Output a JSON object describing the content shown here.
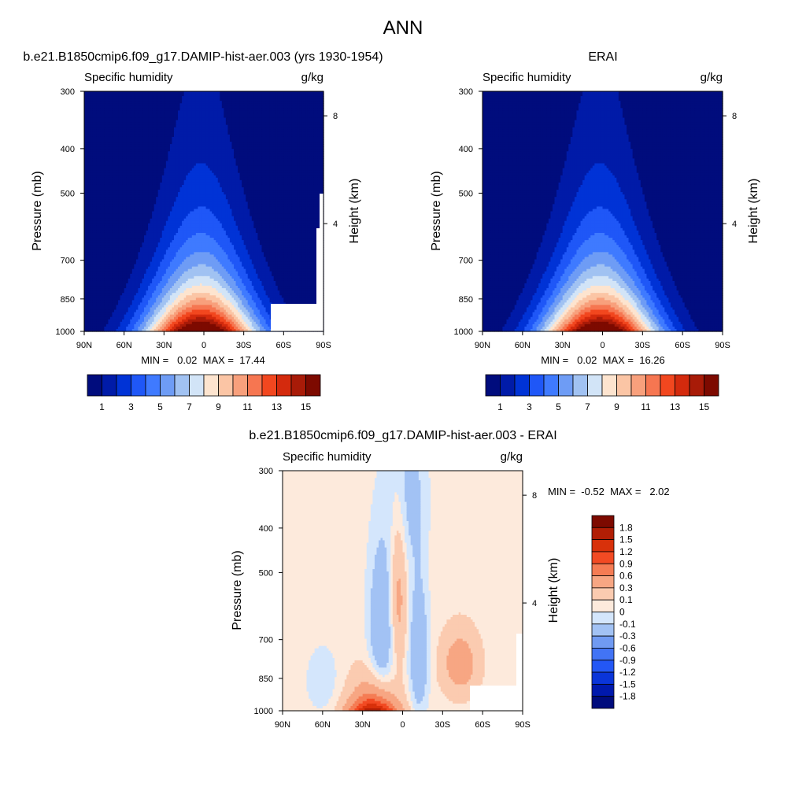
{
  "figure": {
    "title": "ANN"
  },
  "colors": {
    "abs_levels": [
      "#000c7d",
      "#001ba8",
      "#0033d6",
      "#1f57f7",
      "#3f7aff",
      "#6e9cf5",
      "#a1c2f2",
      "#d2e4f7",
      "#fde4cf",
      "#fbc5a5",
      "#f8a07c",
      "#f67651",
      "#f2471f",
      "#d42a0d",
      "#a81b08",
      "#7d0a00"
    ],
    "diff_levels": [
      "#000c7d",
      "#0019ad",
      "#0a35d9",
      "#2357f5",
      "#4274f5",
      "#709af2",
      "#a2c2f4",
      "#d4e6fc",
      "#fdeadc",
      "#fbcbb0",
      "#f7a683",
      "#f57c54",
      "#f24a23",
      "#d8310b",
      "#b11e05",
      "#7d0a00"
    ]
  },
  "chart_data": [
    {
      "type": "heatmap",
      "id": "model",
      "header": "b.e21.B1850cmip6.f09_g17.DAMIP-hist-aer.003 (yrs 1930-1954)",
      "left_label": "Specific humidity",
      "right_label": "g/kg",
      "ylabel": "Pressure (mb)",
      "y2label": "Height (km)",
      "x_ticks": [
        "90N",
        "60N",
        "30N",
        "0",
        "30S",
        "60S",
        "90S"
      ],
      "y_ticks": [
        "300",
        "400",
        "500",
        "700",
        "850",
        "1000"
      ],
      "y2_ticks": [
        "8",
        "4"
      ],
      "min_max_text": "MIN =   0.02  MAX =  17.44",
      "min": 0.02,
      "max": 17.44,
      "colorbar_labels": [
        "1",
        "3",
        "5",
        "7",
        "9",
        "11",
        "13",
        "15"
      ],
      "colorbar_levels": [
        0,
        1,
        2,
        3,
        4,
        5,
        6,
        7,
        8,
        9,
        10,
        11,
        12,
        13,
        14,
        15,
        16
      ]
    },
    {
      "type": "heatmap",
      "id": "obs",
      "header": "ERAI",
      "left_label": "Specific humidity",
      "right_label": "g/kg",
      "ylabel": "Pressure (mb)",
      "y2label": "Height (km)",
      "x_ticks": [
        "90N",
        "60N",
        "30N",
        "0",
        "30S",
        "60S",
        "90S"
      ],
      "y_ticks": [
        "300",
        "400",
        "500",
        "700",
        "850",
        "1000"
      ],
      "y2_ticks": [
        "8",
        "4"
      ],
      "min_max_text": "MIN =   0.02  MAX =  16.26",
      "min": 0.02,
      "max": 16.26,
      "colorbar_labels": [
        "1",
        "3",
        "5",
        "7",
        "9",
        "11",
        "13",
        "15"
      ],
      "colorbar_levels": [
        0,
        1,
        2,
        3,
        4,
        5,
        6,
        7,
        8,
        9,
        10,
        11,
        12,
        13,
        14,
        15,
        16
      ]
    },
    {
      "type": "heatmap",
      "id": "diff",
      "header": "b.e21.B1850cmip6.f09_g17.DAMIP-hist-aer.003 - ERAI",
      "left_label": "Specific humidity",
      "right_label": "g/kg",
      "ylabel": "Pressure (mb)",
      "y2label": "Height (km)",
      "x_ticks": [
        "90N",
        "60N",
        "30N",
        "0",
        "30S",
        "60S",
        "90S"
      ],
      "y_ticks": [
        "300",
        "400",
        "500",
        "700",
        "850",
        "1000"
      ],
      "y2_ticks": [
        "8",
        "4"
      ],
      "min_max_text": "MIN =  -0.52  MAX =   2.02",
      "min": -0.52,
      "max": 2.02,
      "colorbar_labels": [
        "1.8",
        "1.5",
        "1.2",
        "0.9",
        "0.6",
        "0.3",
        "0.1",
        "0",
        "-0.1",
        "-0.3",
        "-0.6",
        "-0.9",
        "-1.2",
        "-1.5",
        "-1.8"
      ]
    }
  ]
}
